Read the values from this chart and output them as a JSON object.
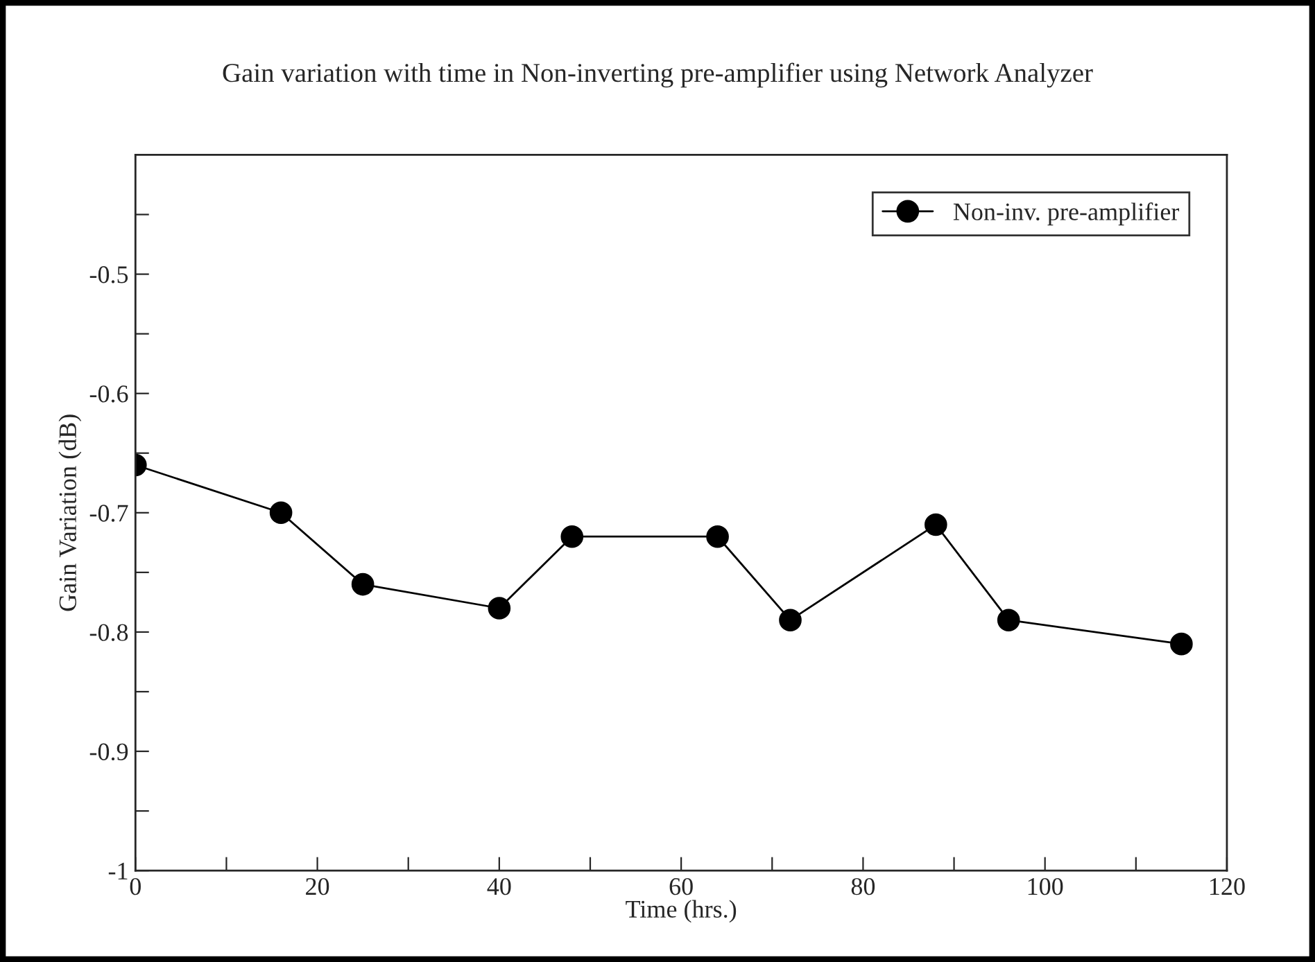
{
  "chart_data": {
    "type": "line",
    "title": "Gain variation with time in Non-inverting pre-amplifier using Network Analyzer",
    "xlabel": "Time (hrs.)",
    "ylabel": "Gain Variation (dB)",
    "x": [
      0,
      16,
      25,
      40,
      48,
      64,
      72,
      88,
      96,
      115
    ],
    "series": [
      {
        "name": "Non-inv. pre-amplifier",
        "color": "#000000",
        "values": [
          -0.66,
          -0.7,
          -0.76,
          -0.78,
          -0.72,
          -0.72,
          -0.79,
          -0.71,
          -0.79,
          -0.81
        ]
      }
    ],
    "xlim": [
      0,
      120
    ],
    "ylim": [
      -1,
      -0.4
    ],
    "xticks": [
      0,
      {
        "value": 10,
        "label": null
      },
      20,
      {
        "value": 30,
        "label": null
      },
      40,
      {
        "value": 50,
        "label": null
      },
      60,
      {
        "value": 70,
        "label": null
      },
      80,
      {
        "value": 90,
        "label": null
      },
      100,
      {
        "value": 110,
        "label": null
      },
      120
    ],
    "yticks": [
      -1,
      {
        "value": -0.95,
        "label": null
      },
      -0.9,
      {
        "value": -0.85,
        "label": null
      },
      -0.8,
      {
        "value": -0.75,
        "label": null
      },
      -0.7,
      {
        "value": -0.65,
        "label": null
      },
      -0.6,
      {
        "value": -0.55,
        "label": null
      },
      -0.5,
      {
        "value": -0.45,
        "label": null
      }
    ],
    "marker": "circle",
    "line_style": "solid",
    "grid": false,
    "legend": "top right"
  }
}
